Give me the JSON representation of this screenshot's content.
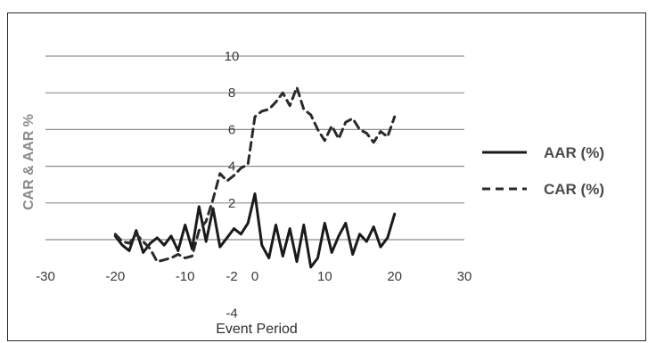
{
  "chart_data": {
    "type": "line",
    "xlabel": "Event Period",
    "ylabel": "CAR & AAR %",
    "xlim": [
      -30,
      30
    ],
    "ylim": [
      -4,
      10
    ],
    "x_ticks": [
      -30,
      -20,
      -10,
      0,
      10,
      20,
      30
    ],
    "y_ticks": [
      -4,
      -2,
      2,
      4,
      6,
      8,
      10
    ],
    "grid": "horizontal",
    "legend_position": "right",
    "series": [
      {
        "name": "AAR (%)",
        "style": "solid",
        "color": "#1a1a1a",
        "x": [
          -20,
          -19,
          -18,
          -17,
          -16,
          -15,
          -14,
          -13,
          -12,
          -11,
          -10,
          -9,
          -8,
          -7,
          -6,
          -5,
          -4,
          -3,
          -2,
          -1,
          0,
          1,
          2,
          3,
          4,
          5,
          6,
          7,
          8,
          9,
          10,
          11,
          12,
          13,
          14,
          15,
          16,
          17,
          18,
          19,
          20
        ],
        "y": [
          0.2,
          -0.3,
          -0.6,
          0.5,
          -0.7,
          -0.2,
          0.1,
          -0.3,
          0.2,
          -0.6,
          0.8,
          -0.5,
          1.8,
          -0.1,
          1.7,
          -0.4,
          0.1,
          0.6,
          0.3,
          0.9,
          2.5,
          -0.3,
          -1.0,
          0.8,
          -0.9,
          0.6,
          -1.2,
          0.8,
          -1.5,
          -1.0,
          0.9,
          -0.7,
          0.2,
          0.9,
          -0.8,
          0.3,
          -0.1,
          0.7,
          -0.4,
          0.1,
          1.4
        ]
      },
      {
        "name": "CAR (%)",
        "style": "dashed",
        "color": "#2a2a2a",
        "x": [
          -20,
          -19,
          -18,
          -17,
          -16,
          -15,
          -14,
          -13,
          -12,
          -11,
          -10,
          -9,
          -8,
          -7,
          -6,
          -5,
          -4,
          -3,
          -2,
          -1,
          0,
          1,
          2,
          3,
          4,
          5,
          6,
          7,
          8,
          9,
          10,
          11,
          12,
          13,
          14,
          15,
          16,
          17,
          18,
          19,
          20
        ],
        "y": [
          0.3,
          -0.1,
          -0.2,
          0.3,
          -0.1,
          -0.5,
          -1.2,
          -1.1,
          -1.0,
          -0.8,
          -1.0,
          -0.9,
          0.5,
          1.0,
          2.2,
          3.6,
          3.2,
          3.5,
          3.9,
          4.1,
          6.7,
          7.0,
          7.1,
          7.5,
          8.0,
          7.3,
          8.3,
          7.1,
          6.8,
          6.0,
          5.4,
          6.2,
          5.5,
          6.4,
          6.6,
          6.0,
          5.8,
          5.3,
          5.9,
          5.6,
          6.7
        ]
      }
    ]
  }
}
